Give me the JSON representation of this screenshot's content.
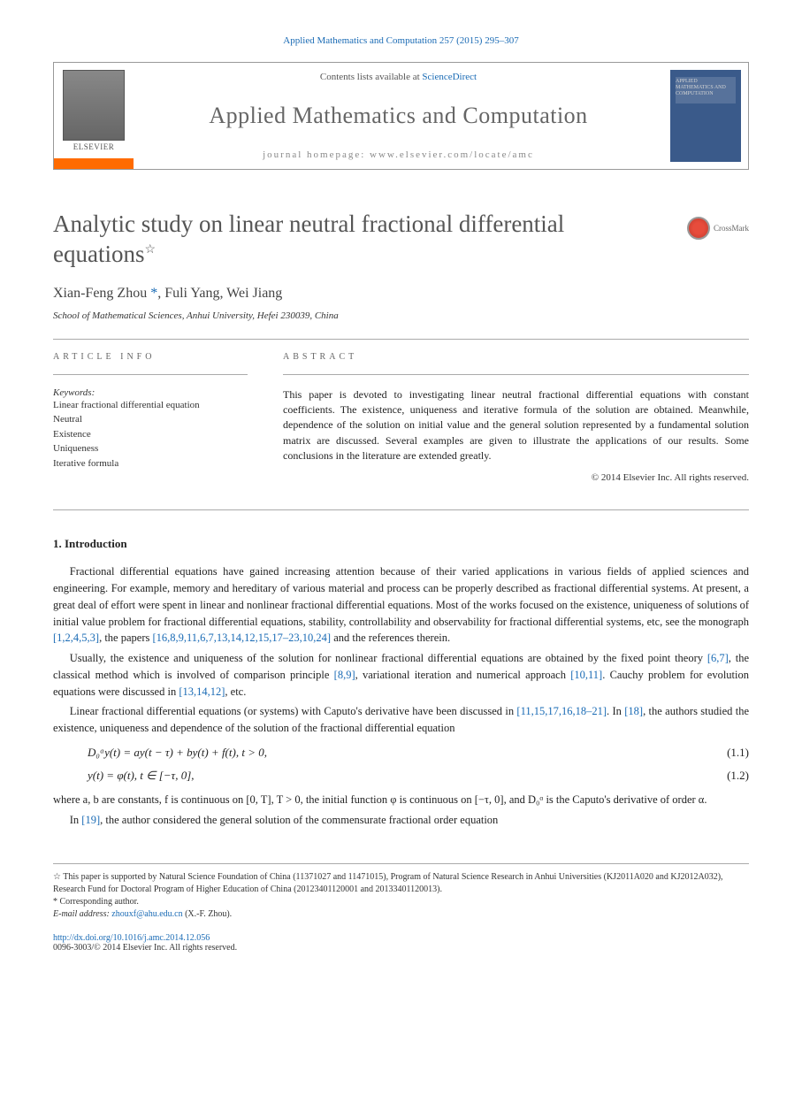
{
  "top_citation": "Applied Mathematics and Computation 257 (2015) 295–307",
  "header": {
    "contents_prefix": "Contents lists available at ",
    "contents_link": "ScienceDirect",
    "journal_name": "Applied Mathematics and Computation",
    "homepage_label": "journal homepage: www.elsevier.com/locate/amc",
    "publisher": "ELSEVIER",
    "cover_text": "APPLIED MATHEMATICS AND COMPUTATION"
  },
  "crossmark_label": "CrossMark",
  "title": "Analytic study on linear neutral fractional differential equations",
  "title_marker": "☆",
  "authors_html": "Xian-Feng Zhou",
  "author_marker": "*",
  "authors_rest": ", Fuli Yang, Wei Jiang",
  "affiliation": "School of Mathematical Sciences, Anhui University, Hefei 230039, China",
  "info_label": "ARTICLE INFO",
  "abstract_label": "ABSTRACT",
  "keywords_header": "Keywords:",
  "keywords": [
    "Linear fractional differential equation",
    "Neutral",
    "Existence",
    "Uniqueness",
    "Iterative formula"
  ],
  "abstract": "This paper is devoted to investigating linear neutral fractional differential equations with constant coefficients. The existence, uniqueness and iterative formula of the solution are obtained. Meanwhile, dependence of the solution on initial value and the general solution represented by a fundamental solution matrix are discussed. Several examples are given to illustrate the applications of our results. Some conclusions in the literature are extended greatly.",
  "copyright": "© 2014 Elsevier Inc. All rights reserved.",
  "section1": "1. Introduction",
  "para1_a": "Fractional differential equations have gained increasing attention because of their varied applications in various fields of applied sciences and engineering. For example, memory and hereditary of various material and process can be properly described as fractional differential systems. At present, a great deal of effort were spent in linear and nonlinear fractional differential equations. Most of the works focused on the existence, uniqueness of solutions of initial value problem for fractional differential equations, stability, controllability and observability for fractional differential systems, etc, see the monograph ",
  "ref1": "[1,2,4,5,3]",
  "para1_b": ", the papers ",
  "ref2": "[16,8,9,11,6,7,13,14,12,15,17–23,10,24]",
  "para1_c": " and the references therein.",
  "para2_a": "Usually, the existence and uniqueness of the solution for nonlinear fractional differential equations are obtained by the fixed point theory ",
  "ref3": "[6,7]",
  "para2_b": ", the classical method which is involved of comparison principle ",
  "ref4": "[8,9]",
  "para2_c": ", variational iteration and numerical approach ",
  "ref5": "[10,11]",
  "para2_d": ". Cauchy problem for evolution equations were discussed in ",
  "ref6": "[13,14,12]",
  "para2_e": ", etc.",
  "para3_a": "Linear fractional differential equations (or systems) with Caputo's derivative have been discussed in ",
  "ref7": "[11,15,17,16,18–21]",
  "para3_b": ". In ",
  "ref8": "[18]",
  "para3_c": ", the authors studied the existence, uniqueness and dependence of the solution of the fractional differential equation",
  "eq1": "D₀ᵅy(t) = ay(t − τ) + by(t) + f(t),    t > 0,",
  "eq1_num": "(1.1)",
  "eq2": "y(t) = φ(t),    t ∈ [−τ, 0],",
  "eq2_num": "(1.2)",
  "para4": "where a, b are constants, f is continuous on [0, T], T > 0, the initial function φ is continuous on [−τ, 0], and D₀ᵅ is the Caputo's derivative of order α.",
  "para5_a": "In ",
  "ref9": "[19]",
  "para5_b": ", the author considered the general solution of the commensurate fractional order equation",
  "footnote_star": "☆ This paper is supported by Natural Science Foundation of China (11371027 and 11471015), Program of Natural Science Research in Anhui Universities (KJ2011A020 and KJ2012A032), Research Fund for Doctoral Program of Higher Education of China (20123401120001 and 20133401120013).",
  "footnote_corr": "* Corresponding author.",
  "footnote_email_label": "E-mail address: ",
  "footnote_email": "zhouxf@ahu.edu.cn",
  "footnote_email_suffix": " (X.-F. Zhou).",
  "doi": "http://dx.doi.org/10.1016/j.amc.2014.12.056",
  "footer_copy": "0096-3003/© 2014 Elsevier Inc. All rights reserved.",
  "colors": {
    "link": "#1a6bb5",
    "elsevier_orange": "#ff6b00",
    "title_gray": "#555555",
    "cover_blue": "#3a5a8a"
  }
}
